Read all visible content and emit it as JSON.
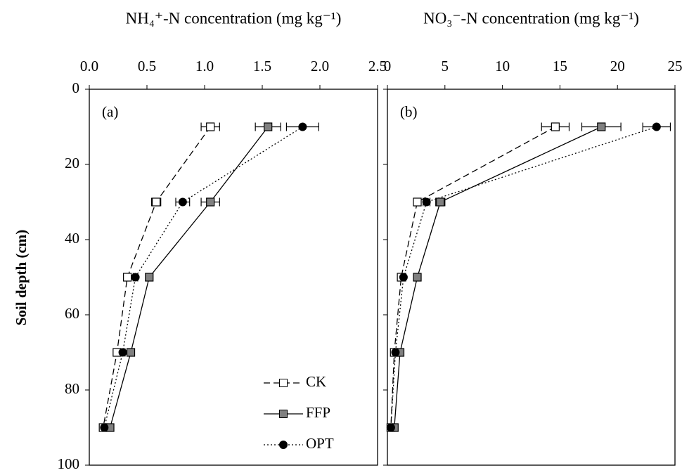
{
  "chart_data": [
    {
      "type": "line",
      "title": "NH₄⁺-N concentration (mg kg⁻¹)",
      "ylabel": "Soil depth (cm)",
      "annotation": "(a)",
      "xlim": [
        0,
        2.5
      ],
      "xticks": [
        {
          "value": 0,
          "label": "0.0"
        },
        0.5,
        {
          "value": 1,
          "label": "1.0"
        },
        1.5,
        {
          "value": 2,
          "label": "2.0"
        },
        2.5
      ],
      "ylim": [
        0,
        100
      ],
      "yticks": [
        0,
        20,
        40,
        60,
        80,
        100
      ],
      "y_inverted": true,
      "y": [
        10,
        30,
        50,
        70,
        90
      ],
      "legend": "lower right",
      "series": [
        {
          "name": "CK",
          "color": "#ffffff",
          "marker": "square",
          "linestyle": "dashed",
          "values": [
            1.05,
            0.58,
            0.33,
            0.24,
            0.12
          ],
          "errors": [
            0.08,
            0.04,
            0.02,
            0.02,
            0.02
          ]
        },
        {
          "name": "FFP",
          "color": "#808080",
          "marker": "square",
          "linestyle": "solid",
          "values": [
            1.55,
            1.05,
            0.52,
            0.36,
            0.18
          ],
          "errors": [
            0.11,
            0.08,
            0.02,
            0.02,
            0.02
          ]
        },
        {
          "name": "OPT",
          "color": "#000000",
          "marker": "circle",
          "linestyle": "dotted",
          "values": [
            1.85,
            0.81,
            0.4,
            0.29,
            0.13
          ],
          "errors": [
            0.14,
            0.06,
            0.02,
            0.02,
            0.02
          ]
        }
      ]
    },
    {
      "type": "line",
      "title": "NO₃⁻-N concentration (mg kg⁻¹)",
      "annotation": "(b)",
      "xlim": [
        0,
        25
      ],
      "xticks": [
        0,
        5,
        10,
        15,
        20,
        25
      ],
      "ylim": [
        0,
        100
      ],
      "y_inverted": true,
      "y": [
        10,
        30,
        50,
        70,
        90
      ],
      "series": [
        {
          "name": "CK",
          "color": "#ffffff",
          "marker": "square",
          "linestyle": "dashed",
          "values": [
            14.6,
            2.6,
            1.2,
            0.6,
            0.3
          ],
          "errors": [
            1.2,
            0.3,
            0.3,
            0.2,
            0.1
          ]
        },
        {
          "name": "FFP",
          "color": "#808080",
          "marker": "square",
          "linestyle": "solid",
          "values": [
            18.6,
            4.6,
            2.6,
            1.1,
            0.6
          ],
          "errors": [
            1.7,
            0.4,
            0.2,
            0.2,
            0.1
          ]
        },
        {
          "name": "OPT",
          "color": "#000000",
          "marker": "circle",
          "linestyle": "dotted",
          "values": [
            23.4,
            3.4,
            1.4,
            0.7,
            0.3
          ],
          "errors": [
            1.2,
            0.3,
            0.2,
            0.2,
            0.1
          ]
        }
      ]
    }
  ]
}
